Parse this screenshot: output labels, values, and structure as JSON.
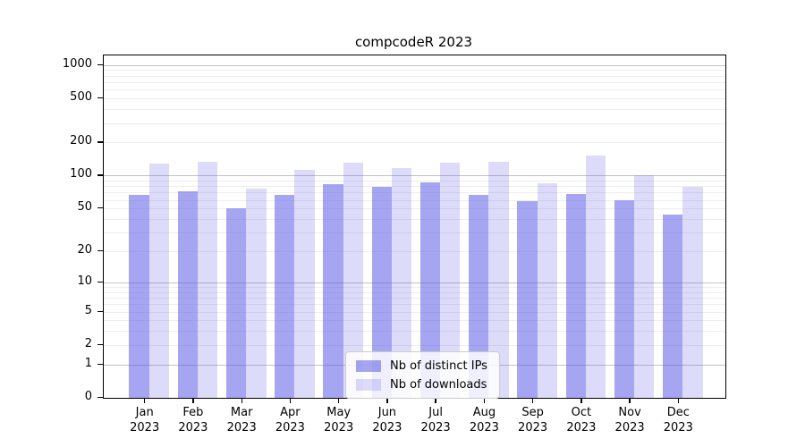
{
  "title": "compcodeR 2023",
  "chart_data": {
    "type": "bar",
    "title": "compcodeR 2023",
    "categories": [
      "Jan",
      "Feb",
      "Mar",
      "Apr",
      "May",
      "Jun",
      "Jul",
      "Aug",
      "Sep",
      "Oct",
      "Nov",
      "Dec"
    ],
    "category_year": "2023",
    "series": [
      {
        "name": "Nb of distinct IPs",
        "color": "rgba(82,82,230,0.52)",
        "values": [
          66,
          72,
          50,
          67,
          83,
          79,
          86,
          67,
          58,
          68,
          59,
          44
        ]
      },
      {
        "name": "Nb of downloads",
        "color": "rgba(82,82,230,0.20)",
        "values": [
          128,
          133,
          76,
          113,
          130,
          118,
          131,
          134,
          85,
          152,
          100,
          79
        ]
      }
    ],
    "yticks": [
      0,
      1,
      2,
      5,
      10,
      20,
      50,
      100,
      200,
      500,
      1000
    ],
    "ylim": [
      0,
      1240
    ],
    "yscale": "log10(1+v)",
    "grid": "horizontal-log-minor",
    "gridline_major_color": "#c3c3c3",
    "gridline_minor_color": "#eeeeee",
    "legend_position": "bottom-center"
  }
}
